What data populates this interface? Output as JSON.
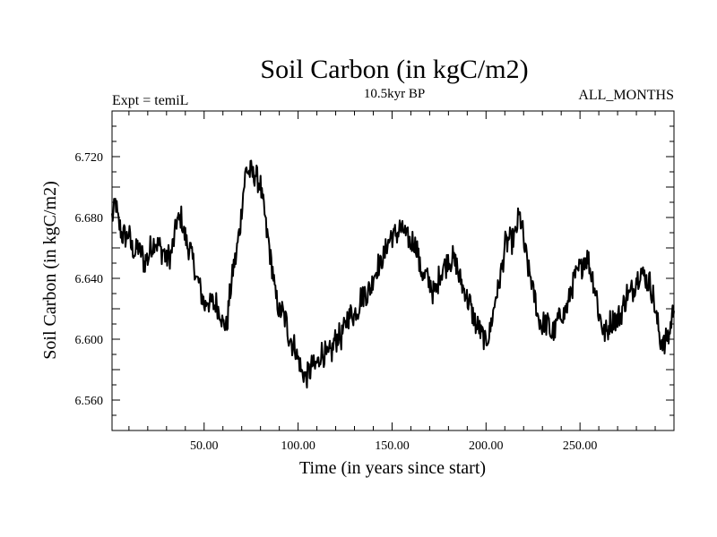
{
  "chart_data": {
    "type": "line",
    "title": "Soil Carbon (in kgC/m2)",
    "subtitle_left": "Expt = temiL",
    "subtitle_center": "10.5kyr BP",
    "subtitle_right": "ALL_MONTHS",
    "xlabel": "Time (in years since start)",
    "ylabel": "Soil Carbon (in kgC/m2)",
    "xlim": [
      1,
      300
    ],
    "ylim": [
      6.54,
      6.75
    ],
    "xticks": [
      50,
      100,
      150,
      200,
      250
    ],
    "xtick_labels": [
      "50.00",
      "100.00",
      "150.00",
      "200.00",
      "250.00"
    ],
    "yticks": [
      6.56,
      6.6,
      6.64,
      6.68,
      6.72
    ],
    "ytick_labels": [
      "6.560",
      "6.600",
      "6.640",
      "6.680",
      "6.720"
    ],
    "line_color": "#000000",
    "band_halfwidth": 0.008,
    "series": [
      {
        "name": "Soil Carbon",
        "x": [
          1,
          3,
          5,
          8,
          10,
          12,
          15,
          18,
          20,
          22,
          25,
          28,
          30,
          33,
          35,
          38,
          40,
          42,
          45,
          48,
          50,
          52,
          55,
          58,
          60,
          62,
          65,
          68,
          70,
          72,
          74,
          76,
          78,
          80,
          82,
          85,
          88,
          90,
          92,
          95,
          98,
          100,
          102,
          105,
          108,
          110,
          112,
          115,
          118,
          120,
          123,
          125,
          128,
          130,
          133,
          135,
          138,
          140,
          143,
          145,
          148,
          150,
          153,
          155,
          158,
          160,
          163,
          165,
          168,
          170,
          173,
          175,
          178,
          180,
          183,
          185,
          188,
          190,
          193,
          195,
          198,
          200,
          203,
          205,
          208,
          210,
          213,
          215,
          218,
          220,
          223,
          225,
          228,
          230,
          233,
          235,
          238,
          240,
          243,
          245,
          248,
          250,
          253,
          255,
          258,
          260,
          263,
          265,
          268,
          270,
          273,
          275,
          278,
          280,
          283,
          285,
          288,
          290,
          293,
          295,
          298,
          300
        ],
        "values": [
          6.678,
          6.688,
          6.675,
          6.665,
          6.668,
          6.66,
          6.658,
          6.652,
          6.655,
          6.66,
          6.665,
          6.658,
          6.65,
          6.66,
          6.675,
          6.678,
          6.668,
          6.66,
          6.645,
          6.635,
          6.62,
          6.625,
          6.625,
          6.618,
          6.612,
          6.61,
          6.64,
          6.665,
          6.685,
          6.708,
          6.712,
          6.71,
          6.705,
          6.7,
          6.685,
          6.655,
          6.63,
          6.62,
          6.615,
          6.605,
          6.595,
          6.585,
          6.58,
          6.575,
          6.582,
          6.585,
          6.59,
          6.588,
          6.594,
          6.598,
          6.603,
          6.61,
          6.615,
          6.618,
          6.625,
          6.628,
          6.634,
          6.64,
          6.648,
          6.655,
          6.662,
          6.668,
          6.672,
          6.67,
          6.668,
          6.665,
          6.66,
          6.648,
          6.64,
          6.635,
          6.632,
          6.64,
          6.648,
          6.655,
          6.65,
          6.645,
          6.635,
          6.625,
          6.618,
          6.61,
          6.6,
          6.6,
          6.61,
          6.625,
          6.645,
          6.66,
          6.665,
          6.668,
          6.68,
          6.665,
          6.645,
          6.63,
          6.615,
          6.61,
          6.608,
          6.605,
          6.61,
          6.615,
          6.622,
          6.63,
          6.642,
          6.648,
          6.652,
          6.65,
          6.635,
          6.615,
          6.605,
          6.608,
          6.612,
          6.615,
          6.62,
          6.628,
          6.634,
          6.638,
          6.645,
          6.642,
          6.632,
          6.62,
          6.6,
          6.594,
          6.608,
          6.625
        ]
      }
    ]
  }
}
